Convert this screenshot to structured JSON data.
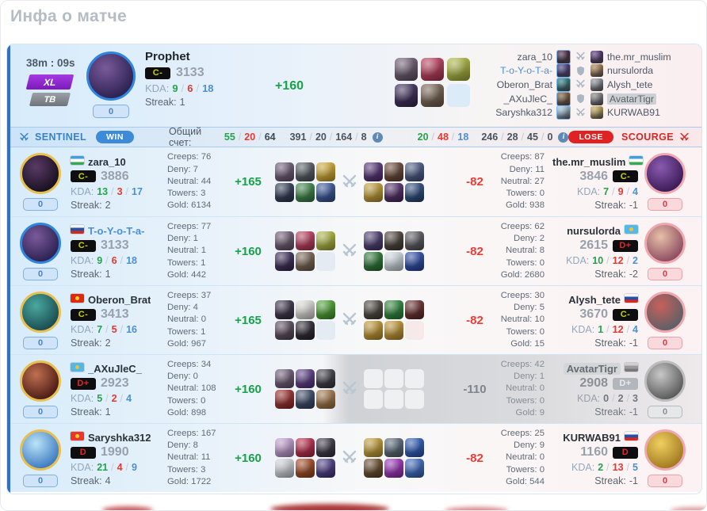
{
  "page": {
    "title": "Инфа о матче"
  },
  "labels": {
    "kda": "KDA:",
    "streak": "Streak:",
    "creeps": "Creeps:",
    "deny": "Deny:",
    "neutral": "Neutral:",
    "towers": "Towers:",
    "gold": "Gold:",
    "sep": "/",
    "info": "i"
  },
  "header": {
    "duration": "38m : 09s",
    "mode": "XL",
    "type": "ТВ",
    "pill": "0",
    "hero_name": "Prophet",
    "rank": "C-",
    "rank_color": "#c6d300",
    "rating": "3133",
    "kills": "9",
    "deaths": "6",
    "assists": "18",
    "streak": "1",
    "delta": "+160",
    "portrait": {
      "c1": "#7a5a9a",
      "c2": "#2a2050",
      "ring": "#2f86e0"
    },
    "items": [
      "#6e5a72",
      "#c23a5c",
      "#b2bc3e",
      "#3a2a5a",
      "#7a6652",
      null
    ],
    "matchups": [
      {
        "left": "zara_10",
        "right": "the.mr_muslim",
        "vs": "swords",
        "left_color": "#4a2848",
        "right_color": "#55307a"
      },
      {
        "left": "T-o-Y-o-T-a-",
        "right": "nursulorda",
        "vs": "shield",
        "left_color": "#4a3a8a",
        "right_color": "#c08a50",
        "left_name_color": "#4a90d9"
      },
      {
        "left": "Oberon_Brat",
        "right": "Alysh_tete",
        "vs": "swords",
        "left_color": "#2a8a8a",
        "right_color": "#9aa0a8"
      },
      {
        "left": "_AXuJleC_",
        "right": "AvatarTigr",
        "vs": "shield",
        "left_color": "#8a6036",
        "right_color": "#909090",
        "highlight_right": true
      },
      {
        "left": "Saryshka312",
        "right": "KURWAB91",
        "vs": "swords",
        "left_color": "#a8d8f0",
        "right_color": "#d8b858"
      }
    ]
  },
  "team_bar": {
    "left_team": "SENTINEL",
    "left_result": "WIN",
    "score_label": "Общий счет:",
    "left_kda": [
      "55",
      "20",
      "64"
    ],
    "left_stats": [
      "391",
      "20",
      "164",
      "8"
    ],
    "right_kda": [
      "20",
      "48",
      "18"
    ],
    "right_stats": [
      "246",
      "28",
      "45",
      "0"
    ],
    "right_result": "LOSE",
    "right_team": "SCOURGE"
  },
  "rows": [
    {
      "vs": "swords",
      "vs_delta": "-82",
      "left": {
        "name": "zara_10",
        "flag": {
          "stripes": [
            "#3f9fe0",
            "#ffffff",
            "#3aa857"
          ]
        },
        "rank": "C-",
        "rank_color": "#c6d300",
        "rating": "3886",
        "kills": "13",
        "deaths": "3",
        "assists": "17",
        "streak": "2",
        "creeps": "76",
        "deny": "7",
        "neutral": "44",
        "towers": "3",
        "gold": "6134",
        "delta": "+165",
        "pill": "0",
        "portrait": {
          "c1": "#5a3a66",
          "c2": "#16101e",
          "ring": "#e8c050"
        }
      },
      "left_items": [
        "#6e5a78",
        "#555c64",
        "#d8b030",
        "#303a56",
        "#3a8a46",
        "#3858a0"
      ],
      "right_items": [
        "#55307a",
        "#6a4636",
        "#4a5a88",
        "#c8a034",
        "#502a6a",
        "#2a4a80"
      ],
      "right": {
        "name": "the.mr_muslim",
        "flag": {
          "stripes": [
            "#3f9fe0",
            "#ffffff",
            "#3aa857"
          ]
        },
        "rank": "C-",
        "rank_color": "#c6d300",
        "rating": "3846",
        "kills": "7",
        "deaths": "9",
        "assists": "4",
        "streak": "-1",
        "creeps": "87",
        "deny": "11",
        "neutral": "27",
        "towers": "0",
        "gold": "938",
        "pill": "0",
        "portrait": {
          "c1": "#8a5ab0",
          "c2": "#3a1a55",
          "ring": "#f0a8b0"
        }
      }
    },
    {
      "vs": "swords",
      "vs_delta": "-82",
      "left": {
        "name": "T-o-Y-o-T-a-",
        "name_color": "#4a90d9",
        "flag": {
          "stripes": [
            "#f4f4f4",
            "#2a4fa0",
            "#d5281e"
          ]
        },
        "rank": "C-",
        "rank_color": "#c6d300",
        "rating": "3133",
        "kills": "9",
        "deaths": "6",
        "assists": "18",
        "streak": "1",
        "creeps": "77",
        "deny": "1",
        "neutral": "1",
        "towers": "1",
        "gold": "442",
        "delta": "+160",
        "pill": "0",
        "portrait": {
          "c1": "#7a5a9a",
          "c2": "#2a2050",
          "ring": "#2f86e0"
        }
      },
      "left_items": [
        "#6e5a72",
        "#c23a5c",
        "#b2bc3e",
        "#3a2a5a",
        "#7a6652",
        null
      ],
      "right_items": [
        "#4a3a72",
        "#4a4038",
        "#5a5a62",
        "#2a7a36",
        "#d8e4ec",
        "#2a4ab0"
      ],
      "right": {
        "name": "nursulorda",
        "flag": {
          "stripes": [
            "#52b8e8",
            "#52b8e8",
            "#52b8e8"
          ],
          "dot": "#f0c030"
        },
        "rank": "D+",
        "rank_color": "#e02828",
        "rating": "2615",
        "kills": "10",
        "deaths": "12",
        "assists": "2",
        "streak": "-2",
        "creeps": "62",
        "deny": "2",
        "neutral": "8",
        "towers": "0",
        "gold": "2680",
        "pill": "0",
        "portrait": {
          "c1": "#e8c0a8",
          "c2": "#8a4a60",
          "ring": "#f0a8b0"
        }
      }
    },
    {
      "vs": "swords",
      "vs_delta": "-82",
      "left": {
        "name": "Oberon_Brat",
        "flag": {
          "stripes": [
            "#de2910",
            "#de2910",
            "#de2910"
          ],
          "dot": "#f8d020"
        },
        "rank": "C-",
        "rank_color": "#c6d300",
        "rating": "3413",
        "kills": "7",
        "deaths": "5",
        "assists": "16",
        "streak": "2",
        "creeps": "37",
        "deny": "4",
        "neutral": "0",
        "towers": "1",
        "gold": "967",
        "delta": "+165",
        "pill": "0",
        "portrait": {
          "c1": "#4aa8a0",
          "c2": "#1a4a50",
          "ring": "#e8c050"
        }
      },
      "left_items": [
        "#3a3048",
        "#e8e6e0",
        "#4aa82e",
        "#5a4a5e",
        "#2a2430",
        null
      ],
      "right_items": [
        "#4a443c",
        "#2a8a3a",
        "#6a2a2a",
        "#c89a30",
        "#c89a30",
        null
      ],
      "right": {
        "name": "Alysh_tete",
        "flag": {
          "stripes": [
            "#f4f4f4",
            "#2a4fa0",
            "#d5281e"
          ]
        },
        "rank": "C-",
        "rank_color": "#c6d300",
        "rating": "3670",
        "kills": "1",
        "deaths": "12",
        "assists": "4",
        "streak": "-1",
        "creeps": "30",
        "deny": "5",
        "neutral": "10",
        "towers": "0",
        "gold": "15",
        "pill": "0",
        "portrait": {
          "c1": "#c8605a",
          "c2": "#5a6068",
          "ring": "#f0a8b0"
        }
      }
    },
    {
      "vs": "swords",
      "vs_delta": "-110",
      "muted_right": true,
      "left": {
        "name": "_AXuJleC_",
        "flag": {
          "stripes": [
            "#52b8e8",
            "#52b8e8",
            "#52b8e8"
          ],
          "dot": "#f0c030"
        },
        "rank": "D+",
        "rank_color": "#e02828",
        "rating": "2923",
        "kills": "5",
        "deaths": "2",
        "assists": "4",
        "streak": "1",
        "creeps": "34",
        "deny": "0",
        "neutral": "108",
        "towers": "0",
        "gold": "898",
        "delta": "+160",
        "pill": "0",
        "portrait": {
          "c1": "#c07050",
          "c2": "#4a1a14",
          "ring": "#e8c050"
        }
      },
      "left_items": [
        "#6e5a78",
        "#5a3a8a",
        "#3a3a44",
        "#a02a2a",
        "#3a4a6a",
        "#a87848"
      ],
      "right_items": [
        null,
        null,
        null,
        null,
        null,
        null
      ],
      "right": {
        "name": "AvatarTigr",
        "flag": {
          "stripes": [
            "#d0d0d0",
            "#9a9a9a",
            "#787878"
          ]
        },
        "rank": "D+",
        "rank_color": "#e8ebee",
        "rating": "2908",
        "kills": "0",
        "deaths": "2",
        "assists": "3",
        "streak": "-1",
        "creeps": "42",
        "deny": "1",
        "neutral": "0",
        "towers": "0",
        "gold": "9",
        "pill": "0",
        "portrait": {
          "c1": "#c8c8c8",
          "c2": "#585858",
          "ring": "#bcbcbc"
        }
      }
    },
    {
      "vs": "swords",
      "vs_delta": "-82",
      "left": {
        "name": "Saryshka312",
        "flag": {
          "stripes": [
            "#e8362a",
            "#e8362a",
            "#e8362a"
          ],
          "dot": "#f8d020"
        },
        "rank": "D",
        "rank_color": "#e02828",
        "rating": "1990",
        "kills": "21",
        "deaths": "4",
        "assists": "9",
        "streak": "4",
        "creeps": "167",
        "deny": "8",
        "neutral": "11",
        "towers": "3",
        "gold": "1722",
        "delta": "+160",
        "pill": "0",
        "portrait": {
          "c1": "#bce4f8",
          "c2": "#3a78c0",
          "ring": "#e8c050"
        }
      },
      "left_items": [
        "#c8a0d8",
        "#c02848",
        "#3a3444",
        "#d8dce4",
        "#a84a20",
        "#4a3a8a"
      ],
      "right_items": [
        "#c8a034",
        "#5a6a7a",
        "#2a5ac0",
        "#6a4a2a",
        "#a030c0",
        "#3a6ac8"
      ],
      "right": {
        "name": "KURWAB91",
        "flag": {
          "stripes": [
            "#f4f4f4",
            "#2a4fa0",
            "#d5281e"
          ]
        },
        "rank": "D",
        "rank_color": "#e02828",
        "rating": "1160",
        "kills": "2",
        "deaths": "13",
        "assists": "5",
        "streak": "-1",
        "creeps": "25",
        "deny": "9",
        "neutral": "0",
        "towers": "0",
        "gold": "544",
        "pill": "0",
        "portrait": {
          "c1": "#f0d060",
          "c2": "#a07820",
          "ring": "#f0a8b0"
        }
      }
    }
  ]
}
